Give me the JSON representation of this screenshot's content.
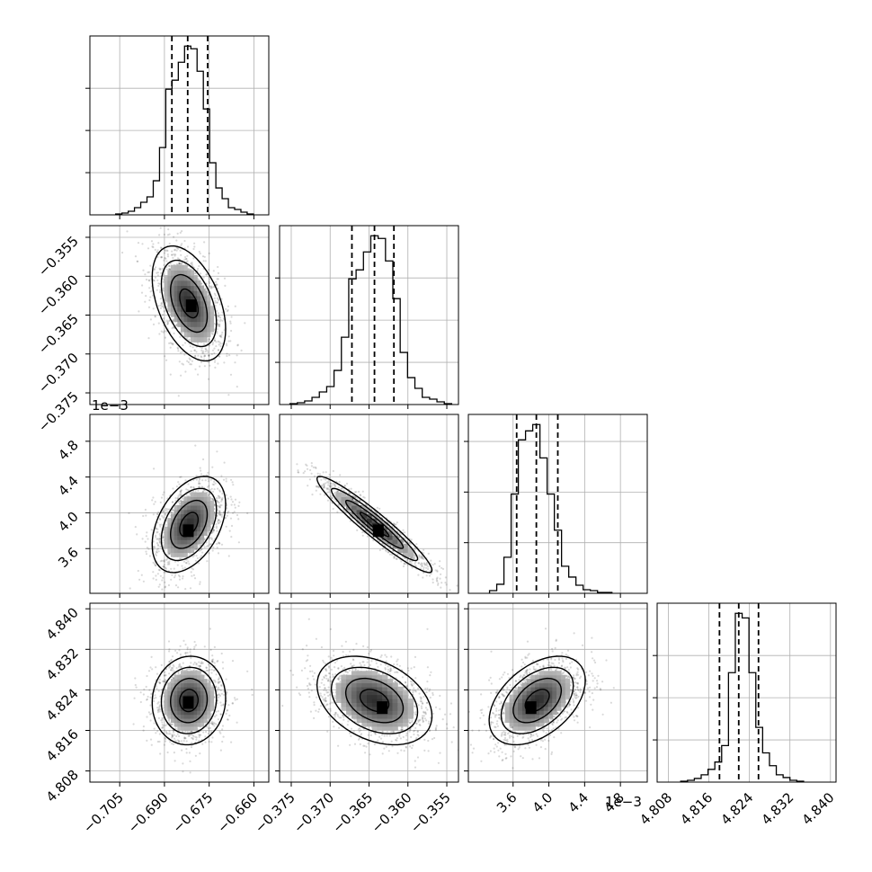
{
  "chart_data": {
    "type": "corner",
    "parameters": [
      {
        "range": [
          -0.715,
          -0.655
        ],
        "ticks": [
          -0.705,
          -0.69,
          -0.675,
          -0.66
        ],
        "tick_labels": [
          "−0.705",
          "−0.690",
          "−0.675",
          "−0.660"
        ],
        "offset_label": "",
        "quantiles": [
          -0.6875,
          -0.6822,
          -0.6755
        ],
        "hist_counts": [
          1,
          2,
          4,
          8,
          14,
          20,
          38,
          75,
          140,
          150,
          170,
          188,
          185,
          160,
          118,
          58,
          30,
          18,
          8,
          6,
          3,
          1
        ],
        "hist_ticks": [
          0.25,
          0.5,
          0.75
        ]
      },
      {
        "range": [
          -0.3765,
          -0.3535
        ],
        "ticks": [
          -0.375,
          -0.37,
          -0.365,
          -0.36,
          -0.355
        ],
        "tick_labels": [
          "−0.375",
          "−0.370",
          "−0.365",
          "−0.360",
          "−0.355"
        ],
        "offset_label": "",
        "quantiles": [
          -0.3672,
          -0.3643,
          -0.3618
        ],
        "hist_counts": [
          1,
          2,
          4,
          8,
          14,
          20,
          38,
          75,
          140,
          150,
          170,
          188,
          185,
          160,
          118,
          58,
          30,
          18,
          8,
          6,
          3,
          1
        ],
        "hist_ticks": [
          0.25,
          0.5,
          0.75
        ],
        "row_ticks": [
          -0.355,
          -0.36,
          -0.365,
          -0.37,
          -0.375
        ],
        "row_tick_labels": [
          "−0.355",
          "−0.360",
          "−0.365",
          "−0.370",
          "−0.375"
        ]
      },
      {
        "range": [
          3.1,
          5.1
        ],
        "ticks": [
          3.6,
          4.0,
          4.4,
          4.8
        ],
        "tick_labels": [
          "3.6",
          "4.0",
          "4.4",
          "4.8"
        ],
        "offset_label": "1e−3",
        "quantiles": [
          3.64,
          3.86,
          4.1
        ],
        "hist_counts": [
          3,
          10,
          40,
          110,
          170,
          180,
          187,
          150,
          110,
          70,
          30,
          18,
          9,
          4,
          3,
          1,
          1
        ],
        "hist_ticks": [
          0.3,
          0.6,
          0.9
        ],
        "row_ticks": [
          3.6,
          4.0,
          4.4,
          4.8
        ],
        "row_tick_labels": [
          "3.6",
          "4.0",
          "4.4",
          "4.8"
        ]
      },
      {
        "range": [
          4.8058,
          4.8411
        ],
        "ticks": [
          4.808,
          4.816,
          4.824,
          4.832,
          4.84
        ],
        "tick_labels": [
          "4.808",
          "4.816",
          "4.824",
          "4.832",
          "4.840"
        ],
        "offset_label": "",
        "quantiles": [
          4.8181,
          4.8219,
          4.8258
        ],
        "hist_counts": [
          1,
          2,
          4,
          8,
          14,
          22,
          40,
          120,
          185,
          180,
          120,
          60,
          32,
          18,
          8,
          5,
          2,
          1
        ],
        "hist_ticks": [
          0.25,
          0.5,
          0.75
        ],
        "row_ticks": [
          4.808,
          4.816,
          4.824,
          4.832,
          4.84
        ],
        "row_tick_labels": [
          "4.808",
          "4.816",
          "4.824",
          "4.832",
          "4.840"
        ]
      }
    ],
    "pairs": [
      {
        "row": 1,
        "col": 0,
        "center": [
          -0.6818,
          -0.3635
        ],
        "sigma": [
          0.0055,
          0.0033
        ],
        "corr": -0.45,
        "peak": [
          -0.681,
          -0.3638
        ]
      },
      {
        "row": 2,
        "col": 0,
        "center": [
          -0.6818,
          3.87
        ],
        "sigma": [
          0.0055,
          0.24
        ],
        "corr": 0.42,
        "peak": [
          -0.682,
          3.8
        ]
      },
      {
        "row": 2,
        "col": 1,
        "center": [
          -0.3643,
          3.87
        ],
        "sigma": [
          0.0033,
          0.24
        ],
        "corr": -0.95,
        "peak": [
          -0.3638,
          3.8
        ]
      },
      {
        "row": 3,
        "col": 0,
        "center": [
          -0.6818,
          4.8219
        ],
        "sigma": [
          0.0055,
          0.0039
        ],
        "corr": 0.05,
        "peak": [
          -0.682,
          4.8215
        ]
      },
      {
        "row": 3,
        "col": 1,
        "center": [
          -0.3643,
          4.8219
        ],
        "sigma": [
          0.0033,
          0.0039
        ],
        "corr": -0.35,
        "peak": [
          -0.3633,
          4.8205
        ]
      },
      {
        "row": 3,
        "col": 2,
        "center": [
          3.87,
          4.8219
        ],
        "sigma": [
          0.24,
          0.0039
        ],
        "corr": 0.45,
        "peak": [
          3.8,
          4.8205
        ]
      }
    ],
    "contour_levels_sigma": [
      0.5,
      1.0,
      1.5,
      2.0
    ],
    "grid": true,
    "colors": {
      "line": "#000000",
      "grid": "#b0b0b0",
      "points": "#000000"
    }
  }
}
